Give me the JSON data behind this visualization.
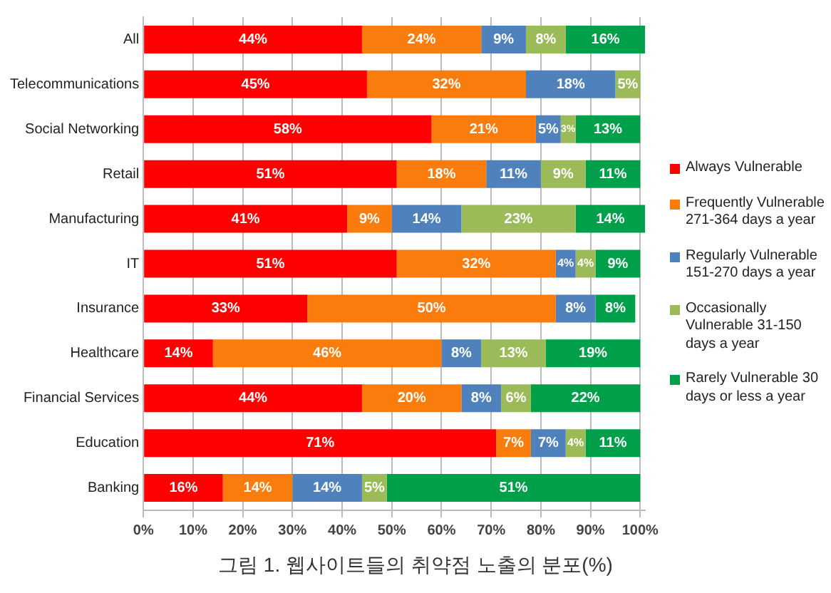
{
  "chart_data": {
    "type": "bar",
    "orientation": "horizontal",
    "stacked": true,
    "categories": [
      "All",
      "Telecommunications",
      "Social Networking",
      "Retail",
      "Manufacturing",
      "IT",
      "Insurance",
      "Healthcare",
      "Financial Services",
      "Education",
      "Banking"
    ],
    "series": [
      {
        "name": "Always Vulnerable",
        "color": "#ff0000",
        "values": [
          44,
          45,
          58,
          51,
          41,
          51,
          33,
          14,
          44,
          71,
          16
        ],
        "value_labels": [
          "44%",
          "45%",
          "58%",
          "51%",
          "41%",
          "51%",
          "33%",
          "14%",
          "44%",
          "71%",
          "16%"
        ]
      },
      {
        "name": "Frequently Vulnerable 271-364 days a year",
        "color": "#f97c0c",
        "values": [
          24,
          32,
          21,
          18,
          9,
          32,
          50,
          46,
          20,
          7,
          14
        ],
        "value_labels": [
          "24%",
          "32%",
          "21%",
          "18%",
          "9%",
          "32%",
          "50%",
          "46%",
          "20%",
          "7%",
          "14%"
        ]
      },
      {
        "name": "Regularly Vulnerable 151-270 days a year",
        "color": "#4f81bd",
        "values": [
          9,
          18,
          5,
          11,
          14,
          4,
          8,
          8,
          8,
          7,
          14
        ],
        "value_labels": [
          "9%",
          "18%",
          "5%",
          "11%",
          "14%",
          "4%",
          "8%",
          "8%",
          "8%",
          "7%",
          "14%"
        ]
      },
      {
        "name": "Occasionally Vulnerable 31-150 days a year",
        "color": "#9bbb59",
        "values": [
          8,
          5,
          3,
          9,
          23,
          4,
          null,
          13,
          6,
          4,
          5
        ],
        "value_labels": [
          "8%",
          "5%",
          "3%",
          "9%",
          "23%",
          "4%",
          null,
          "13%",
          "6%",
          "4%",
          "5%"
        ]
      },
      {
        "name": "Rarely Vulnerable 30 days or less a year",
        "color": "#00a04a",
        "values": [
          16,
          null,
          13,
          11,
          14,
          9,
          8,
          19,
          22,
          11,
          51
        ],
        "value_labels": [
          "16%",
          null,
          "13%",
          "11%",
          "14%",
          "9%",
          "8%",
          "19%",
          "22%",
          "11%",
          "51%"
        ]
      }
    ],
    "xlim": [
      0,
      101
    ],
    "xticks": [
      {
        "value": 0,
        "label": "0%"
      },
      {
        "value": 10,
        "label": "10%"
      },
      {
        "value": 20,
        "label": "20%"
      },
      {
        "value": 30,
        "label": "30%"
      },
      {
        "value": 40,
        "label": "40%"
      },
      {
        "value": 50,
        "label": "50%"
      },
      {
        "value": 60,
        "label": "60%"
      },
      {
        "value": 70,
        "label": "70%"
      },
      {
        "value": 80,
        "label": "80%"
      },
      {
        "value": 90,
        "label": "90%"
      },
      {
        "value": 100,
        "label": "100%"
      }
    ],
    "grid": "x",
    "legend": "right",
    "annotations": [
      "그림 1. 웹사이트들의 취약점 노출의 분포(%)"
    ]
  }
}
